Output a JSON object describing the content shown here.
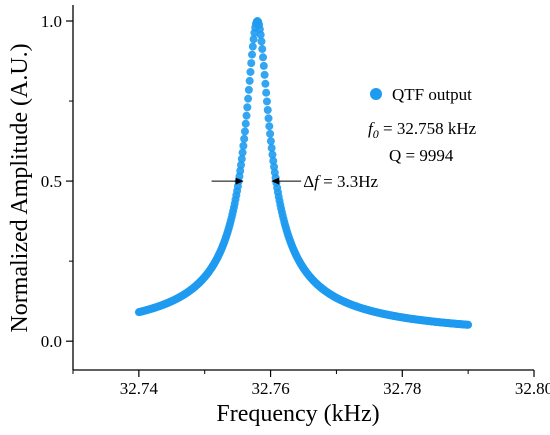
{
  "chart_data": {
    "type": "scatter",
    "xlabel": "Frequency (kHz)",
    "ylabel": "Normalized Amplitude (A.U.)",
    "xlim": [
      32.73,
      32.8
    ],
    "ylim": [
      -0.09,
      1.05
    ],
    "xticks": [
      "32.74",
      "32.76",
      "32.78",
      "32.80"
    ],
    "xtick_values": [
      32.74,
      32.76,
      32.78,
      32.8
    ],
    "yticks": [
      "0.0",
      "0.5",
      "1.0"
    ],
    "ytick_values": [
      0.0,
      0.5,
      1.0
    ],
    "series": [
      {
        "name": "QTF output",
        "color": "#1e9bf0",
        "x_start": 32.74,
        "x_end": 32.79,
        "points": 420,
        "f0": 32.758,
        "Q": 9994
      }
    ],
    "legend": {
      "label": "QTF output",
      "position": "top-right"
    },
    "annotations": {
      "f0_symbol": "f",
      "f0_sub": "0",
      "f0_rest": " = 32.758 kHz",
      "q_text": "Q = 9994",
      "df_delta": "Δ",
      "df_symbol": "f",
      "df_rest": " = 3.3Hz",
      "fwhm_level": 0.5,
      "fwhm_left": 32.75636,
      "fwhm_right": 32.75964
    },
    "grid": false
  }
}
